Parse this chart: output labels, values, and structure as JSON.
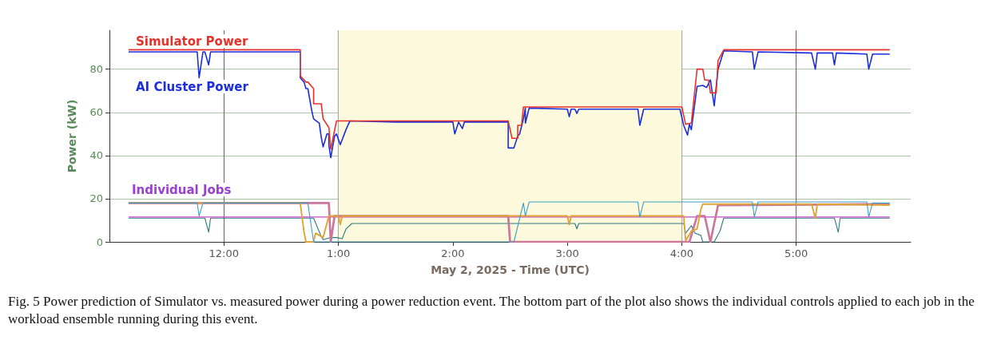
{
  "chart_data": {
    "type": "line",
    "xlabel": "May 2, 2025 - Time (UTC)",
    "ylabel": "Power (kW)",
    "xlim": [
      "2025-05-02T11:00",
      "2025-05-02T18:00"
    ],
    "xticks": [
      {
        "value": "2025-05-02T12:00",
        "label": "12:00"
      },
      {
        "value": "2025-05-02T13:00",
        "label": "1:00"
      },
      {
        "value": "2025-05-02T14:00",
        "label": "2:00"
      },
      {
        "value": "2025-05-02T15:00",
        "label": "3:00"
      },
      {
        "value": "2025-05-02T16:00",
        "label": "4:00"
      },
      {
        "value": "2025-05-02T17:00",
        "label": "5:00"
      }
    ],
    "ylim": [
      0,
      98
    ],
    "yticks": [
      0,
      20,
      40,
      60,
      80
    ],
    "grid": true,
    "legend": false,
    "marker": "none",
    "bands": [
      {
        "axis": "x",
        "from": "2025-05-02T13:00",
        "to": "2025-05-02T16:00",
        "color": "#fdf9dc"
      }
    ],
    "annotations": [
      "Individual Jobs",
      "Fig. 5  Power prediction of Simulator vs. measured power during a power reduction event. The bottom part of the plot also shows the individual controls applied to each job in the workload ensemble running during this event."
    ],
    "series": [
      {
        "name": "Simulator Power",
        "color": "#e8312a",
        "x": [
          "2025-05-02T11:10",
          "2025-05-02T12:40",
          "2025-05-02T12:40",
          "2025-05-02T12:43",
          "2025-05-02T12:44",
          "2025-05-02T12:47",
          "2025-05-02T12:47",
          "2025-05-02T12:51",
          "2025-05-02T12:52",
          "2025-05-02T12:55",
          "2025-05-02T12:56",
          "2025-05-02T12:59",
          "2025-05-02T14:29",
          "2025-05-02T14:31",
          "2025-05-02T14:34",
          "2025-05-02T14:34",
          "2025-05-02T14:36",
          "2025-05-02T14:37",
          "2025-05-02T16:00",
          "2025-05-02T16:02",
          "2025-05-02T16:05",
          "2025-05-02T16:08",
          "2025-05-02T16:11",
          "2025-05-02T16:12",
          "2025-05-02T16:14",
          "2025-05-02T16:15",
          "2025-05-02T16:18",
          "2025-05-02T16:19",
          "2025-05-02T16:22",
          "2025-05-02T17:49"
        ],
        "values": [
          89,
          89,
          77,
          74,
          74,
          71,
          64,
          64,
          57,
          53,
          43,
          56,
          56,
          48,
          48,
          54,
          54,
          62.5,
          62.5,
          54.5,
          55,
          80,
          80,
          75,
          75,
          69,
          69,
          84,
          89,
          89
        ]
      },
      {
        "name": "AI Cluster Power",
        "color": "#1a2ee0",
        "x": [
          "2025-05-02T11:10",
          "2025-05-02T11:30",
          "2025-05-02T11:46",
          "2025-05-02T11:47",
          "2025-05-02T11:49",
          "2025-05-02T11:50",
          "2025-05-02T11:52",
          "2025-05-02T11:53",
          "2025-05-02T12:12",
          "2025-05-02T12:40",
          "2025-05-02T12:40",
          "2025-05-02T12:42",
          "2025-05-02T12:43",
          "2025-05-02T12:44",
          "2025-05-02T12:46",
          "2025-05-02T12:47",
          "2025-05-02T12:50",
          "2025-05-02T12:51",
          "2025-05-02T12:52",
          "2025-05-02T12:54",
          "2025-05-02T12:55",
          "2025-05-02T12:55",
          "2025-05-02T12:56",
          "2025-05-02T12:58",
          "2025-05-02T12:59",
          "2025-05-02T13:01",
          "2025-05-02T13:04",
          "2025-05-02T13:06",
          "2025-05-02T13:30",
          "2025-05-02T14:00",
          "2025-05-02T14:01",
          "2025-05-02T14:03",
          "2025-05-02T14:05",
          "2025-05-02T14:06",
          "2025-05-02T14:29",
          "2025-05-02T14:29",
          "2025-05-02T14:32",
          "2025-05-02T14:34",
          "2025-05-02T14:35",
          "2025-05-02T14:37",
          "2025-05-02T14:38",
          "2025-05-02T14:38",
          "2025-05-02T14:40",
          "2025-05-02T15:00",
          "2025-05-02T15:01",
          "2025-05-02T15:02",
          "2025-05-02T15:04",
          "2025-05-02T15:05",
          "2025-05-02T15:06",
          "2025-05-02T15:37",
          "2025-05-02T15:38",
          "2025-05-02T15:40",
          "2025-05-02T15:59",
          "2025-05-02T16:01",
          "2025-05-02T16:03",
          "2025-05-02T16:04",
          "2025-05-02T16:05",
          "2025-05-02T16:08",
          "2025-05-02T16:11",
          "2025-05-02T16:13",
          "2025-05-02T16:15",
          "2025-05-02T16:17",
          "2025-05-02T16:19",
          "2025-05-02T16:22",
          "2025-05-02T16:37",
          "2025-05-02T16:38",
          "2025-05-02T16:40",
          "2025-05-02T17:08",
          "2025-05-02T17:10",
          "2025-05-02T17:11",
          "2025-05-02T17:19",
          "2025-05-02T17:20",
          "2025-05-02T17:21",
          "2025-05-02T17:37",
          "2025-05-02T17:38",
          "2025-05-02T17:40",
          "2025-05-02T17:49"
        ],
        "values": [
          88,
          88,
          88,
          76,
          88,
          88,
          82,
          88,
          88,
          88,
          76,
          74,
          71,
          71,
          61,
          57,
          55,
          48.5,
          44,
          50,
          50,
          45,
          39,
          49,
          50,
          45,
          52,
          56,
          55.5,
          55.5,
          50,
          55.5,
          52.5,
          55.5,
          55.5,
          43.5,
          43.5,
          49,
          50,
          57,
          62,
          55,
          62,
          61.5,
          58,
          61.5,
          61.5,
          59.5,
          61.5,
          61.5,
          54,
          61.5,
          61.5,
          54,
          49.5,
          54.5,
          52,
          72,
          72.5,
          71.5,
          75,
          63,
          80,
          88.5,
          88,
          80,
          88,
          87.5,
          80,
          87.5,
          87.5,
          82,
          87.5,
          87,
          80,
          87,
          87
        ]
      },
      {
        "color": "#3a9fc8",
        "x": [
          "2025-05-02T11:10",
          "2025-05-02T11:46",
          "2025-05-02T11:47",
          "2025-05-02T11:49",
          "2025-05-02T12:44",
          "2025-05-02T12:47",
          "2025-05-02T14:32",
          "2025-05-02T14:37",
          "2025-05-02T14:38",
          "2025-05-02T14:40",
          "2025-05-02T15:37",
          "2025-05-02T15:38",
          "2025-05-02T15:40",
          "2025-05-02T16:37",
          "2025-05-02T16:38",
          "2025-05-02T16:40",
          "2025-05-02T17:37",
          "2025-05-02T17:38",
          "2025-05-02T17:40",
          "2025-05-02T17:49"
        ],
        "values": [
          18,
          18,
          12,
          18,
          18,
          0,
          0,
          18,
          12,
          18.5,
          18.5,
          11.5,
          18.5,
          18.5,
          11.5,
          18.5,
          18.5,
          11.5,
          18,
          18
        ]
      },
      {
        "color": "#e0a535",
        "x": [
          "2025-05-02T11:10",
          "2025-05-02T12:40",
          "2025-05-02T12:42",
          "2025-05-02T12:43",
          "2025-05-02T12:47",
          "2025-05-02T12:48",
          "2025-05-02T12:52",
          "2025-05-02T12:55",
          "2025-05-02T13:00",
          "2025-05-02T13:01",
          "2025-05-02T13:02",
          "2025-05-02T15:00",
          "2025-05-02T15:01",
          "2025-05-02T15:02",
          "2025-05-02T16:01",
          "2025-05-02T16:02",
          "2025-05-02T16:05",
          "2025-05-02T16:08",
          "2025-05-02T16:10",
          "2025-05-02T16:11",
          "2025-05-02T17:08",
          "2025-05-02T17:10",
          "2025-05-02T17:11",
          "2025-05-02T17:49"
        ],
        "values": [
          18,
          18,
          4.5,
          0,
          0,
          4,
          2,
          12,
          12,
          8,
          12,
          12,
          8,
          12,
          12,
          0.5,
          5,
          6,
          15,
          17.5,
          17.5,
          11,
          17.5,
          17
        ]
      },
      {
        "color": "#cc7799",
        "x": [
          "2025-05-02T11:10",
          "2025-05-02T12:55",
          "2025-05-02T12:56",
          "2025-05-02T12:58",
          "2025-05-02T14:29",
          "2025-05-02T14:30",
          "2025-05-02T16:04",
          "2025-05-02T16:08",
          "2025-05-02T16:12",
          "2025-05-02T16:15",
          "2025-05-02T16:19",
          "2025-05-02T17:49"
        ],
        "values": [
          18,
          18,
          0,
          12,
          12,
          0,
          0,
          12,
          12,
          0,
          17,
          17.5
        ]
      },
      {
        "color": "#cc44cc",
        "x": [
          "2025-05-02T11:10",
          "2025-05-02T17:49"
        ],
        "values": [
          11.5,
          11.5
        ]
      },
      {
        "color": "#2e7b7e",
        "x": [
          "2025-05-02T11:10",
          "2025-05-02T11:50",
          "2025-05-02T11:52",
          "2025-05-02T11:53",
          "2025-05-02T12:47",
          "2025-05-02T12:51",
          "2025-05-02T12:52",
          "2025-05-02T12:56",
          "2025-05-02T12:59",
          "2025-05-02T13:02",
          "2025-05-02T13:04",
          "2025-05-02T13:07",
          "2025-05-02T15:04",
          "2025-05-02T15:05",
          "2025-05-02T15:06",
          "2025-05-02T16:01",
          "2025-05-02T16:02",
          "2025-05-02T16:05",
          "2025-05-02T16:07",
          "2025-05-02T16:10",
          "2025-05-02T16:11",
          "2025-05-02T16:17",
          "2025-05-02T16:20",
          "2025-05-02T16:22",
          "2025-05-02T17:20",
          "2025-05-02T17:22",
          "2025-05-02T17:23",
          "2025-05-02T17:49"
        ],
        "values": [
          11,
          11,
          4.5,
          11,
          11,
          2.5,
          1,
          2,
          2,
          1.5,
          6,
          8.5,
          8.5,
          6,
          8.5,
          8.5,
          4,
          7.5,
          4,
          3,
          0,
          0,
          5,
          11,
          11,
          4.5,
          11,
          11
        ]
      }
    ]
  }
}
